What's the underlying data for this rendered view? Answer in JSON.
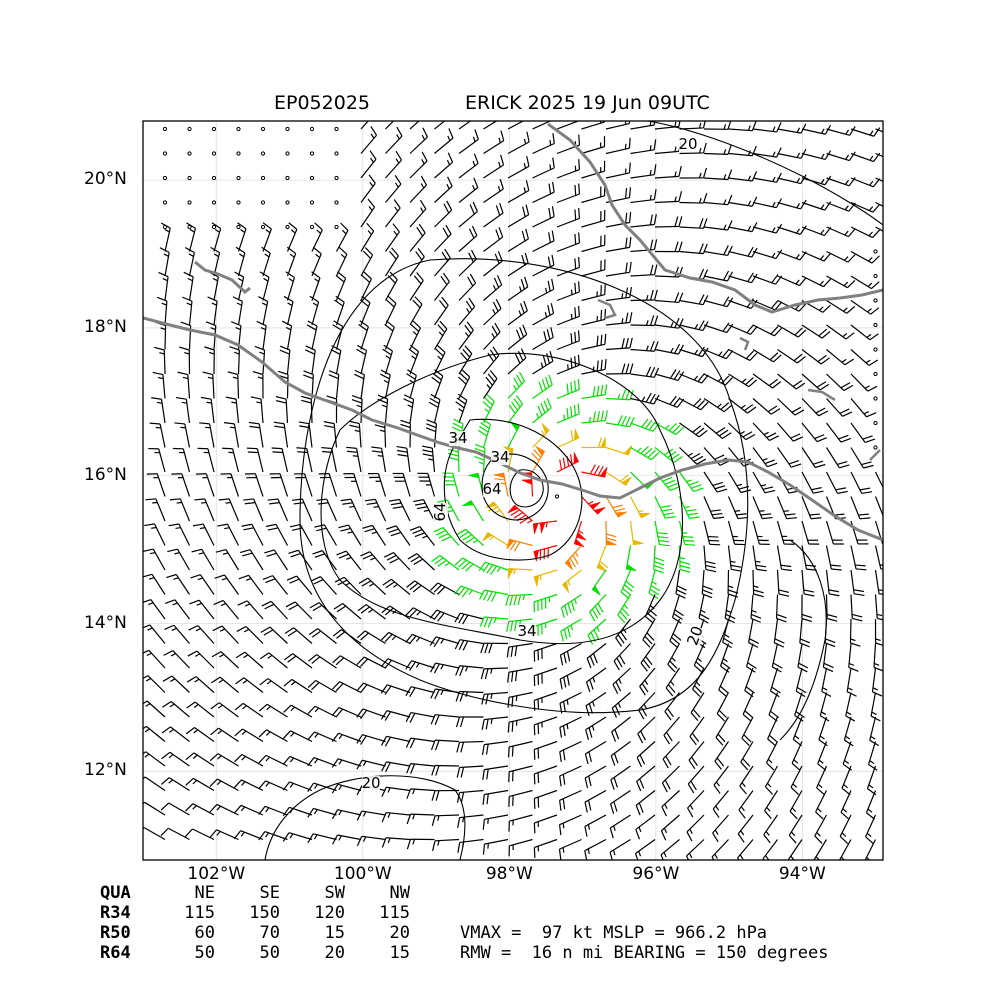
{
  "title": {
    "storm_id": "EP052025",
    "storm_time": "ERICK 2025 19 Jun 09UTC"
  },
  "map": {
    "lon_range": [
      -103,
      -92.9
    ],
    "lat_range": [
      10.8,
      20.8
    ],
    "lat_ticks": [
      {
        "value": 20,
        "label": "20°N"
      },
      {
        "value": 18,
        "label": "18°N"
      },
      {
        "value": 16,
        "label": "16°N"
      },
      {
        "value": 14,
        "label": "14°N"
      },
      {
        "value": 12,
        "label": "12°N"
      }
    ],
    "lon_ticks": [
      {
        "value": -102,
        "label": "102°W"
      },
      {
        "value": -100,
        "label": "100°W"
      },
      {
        "value": -98,
        "label": "98°W"
      },
      {
        "value": -96,
        "label": "96°W"
      },
      {
        "value": -94,
        "label": "94°W"
      }
    ],
    "storm_center": {
      "lon": -97.3,
      "lat": 15.6
    },
    "contour_labels": [
      "20",
      "34",
      "64",
      "20",
      "34",
      "64",
      "20",
      "34"
    ],
    "colors": {
      "lt34": "#000000",
      "r34": "#00e000",
      "r50": "#e6b800",
      "r64": "#ff7f00",
      "r80": "#ff0000",
      "coast": "#808080",
      "contour": "#000000",
      "grid": "#dddddd"
    }
  },
  "wind_radii": {
    "header": [
      "QUA",
      "NE",
      "SE",
      "SW",
      "NW"
    ],
    "rows": [
      {
        "label": "R34",
        "values": [
          "115",
          "150",
          "120",
          "115"
        ]
      },
      {
        "label": "R50",
        "values": [
          "60",
          "70",
          "15",
          "20"
        ]
      },
      {
        "label": "R64",
        "values": [
          "50",
          "50",
          "20",
          "15"
        ]
      }
    ]
  },
  "summary": {
    "line1": "VMAX =  97 kt MSLP = 966.2 hPa",
    "line2": "RMW =  16 n mi BEARING = 150 degrees"
  }
}
